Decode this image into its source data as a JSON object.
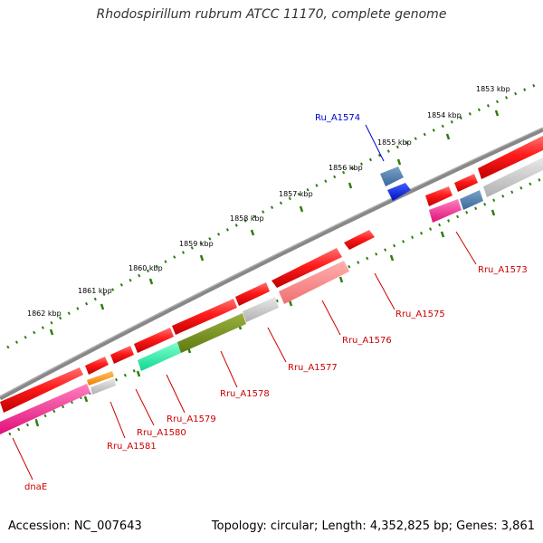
{
  "title": "Rhodospirillum rubrum ATCC 11170, complete genome",
  "accession": "Accession: NC_007643",
  "stats": "Topology: circular; Length: 4,352,825 bp; Genes: 3,861",
  "colors": {
    "backbone": "#808080",
    "tick": "#2e7d12",
    "cds": "#ff1a1a",
    "label_default": "#cc0000",
    "label_highlight": "#0000cc"
  },
  "kbp_ticks": [
    "1853 kbp",
    "1854 kbp",
    "1855 kbp",
    "1856 kbp",
    "1857 kbp",
    "1858 kbp",
    "1859 kbp",
    "1860 kbp",
    "1861 kbp",
    "1862 kbp"
  ],
  "gene_labels": [
    {
      "text": "Ru_A1574",
      "color": "#0000cc"
    },
    {
      "text": "Rru_A1573",
      "color": "#cc0000"
    },
    {
      "text": "Rru_A1575",
      "color": "#cc0000"
    },
    {
      "text": "Rru_A1576",
      "color": "#cc0000"
    },
    {
      "text": "Rru_A1577",
      "color": "#cc0000"
    },
    {
      "text": "Rru_A1578",
      "color": "#cc0000"
    },
    {
      "text": "Rru_A1579",
      "color": "#cc0000"
    },
    {
      "text": "Rru_A1580",
      "color": "#cc0000"
    },
    {
      "text": "Rru_A1581",
      "color": "#cc0000"
    },
    {
      "text": "dnaE",
      "color": "#cc0000"
    }
  ]
}
